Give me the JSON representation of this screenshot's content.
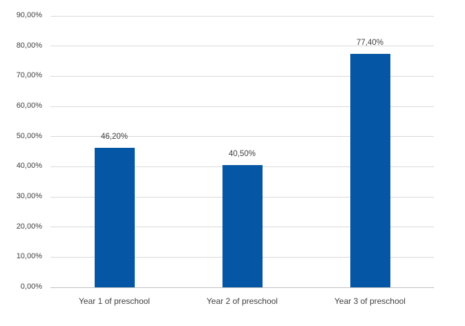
{
  "chart_data": {
    "type": "bar",
    "title": "",
    "xlabel": "",
    "ylabel": "",
    "categories": [
      "Year 1 of preschool",
      "Year 2 of preschool",
      "Year 3 of preschool"
    ],
    "values": [
      46.2,
      40.5,
      77.4
    ],
    "value_labels": [
      "46,20%",
      "40,50%",
      "77,40%"
    ],
    "y_tick_values": [
      0,
      10,
      20,
      30,
      40,
      50,
      60,
      70,
      80,
      90
    ],
    "y_tick_labels": [
      "0,00%",
      "10,00%",
      "20,00%",
      "30,00%",
      "40,00%",
      "50,00%",
      "60,00%",
      "70,00%",
      "80,00%",
      "90,00%"
    ],
    "ylim": [
      0,
      90
    ],
    "grid": true,
    "legend_position": "none",
    "colors": {
      "bar": "#0556a4",
      "gridline": "#d9d9d9",
      "axis_line": "#bfbfbf",
      "text": "#404040",
      "background": "#ffffff"
    }
  }
}
